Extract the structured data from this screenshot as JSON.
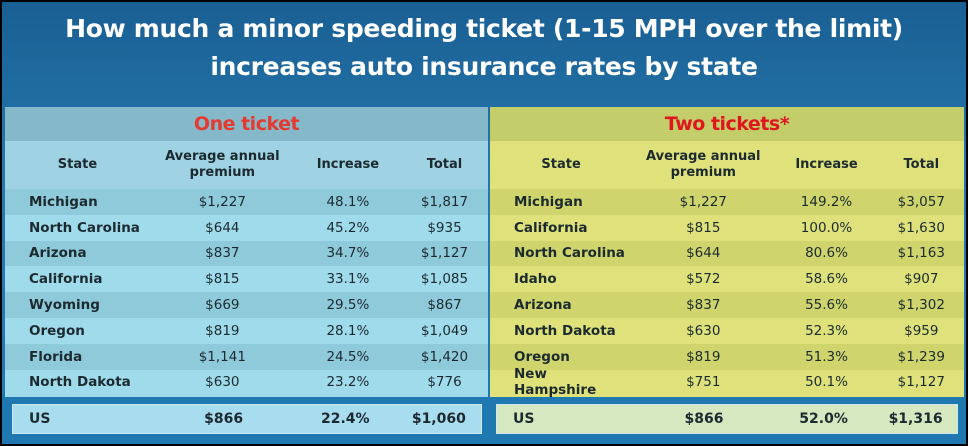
{
  "title_line1": "How much a minor speeding ticket (1-15 MPH over the limit)",
  "title_line2": "increases auto insurance rates by state",
  "columns": [
    "State",
    "Average annual premium",
    "Increase",
    "Total"
  ],
  "one_ticket": {
    "heading": "One ticket",
    "rows": [
      [
        "Michigan",
        "$1,227",
        "48.1%",
        "$1,817"
      ],
      [
        "North Carolina",
        "$644",
        "45.2%",
        "$935"
      ],
      [
        "Arizona",
        "$837",
        "34.7%",
        "$1,127"
      ],
      [
        "California",
        "$815",
        "33.1%",
        "$1,085"
      ],
      [
        "Wyoming",
        "$669",
        "29.5%",
        "$867"
      ],
      [
        "Oregon",
        "$819",
        "28.1%",
        "$1,049"
      ],
      [
        "Florida",
        "$1,141",
        "24.5%",
        "$1,420"
      ],
      [
        "North Dakota",
        "$630",
        "23.2%",
        "$776"
      ]
    ],
    "us": [
      "US",
      "$866",
      "22.4%",
      "$1,060"
    ]
  },
  "two_tickets": {
    "heading": "Two tickets*",
    "rows": [
      [
        "Michigan",
        "$1,227",
        "149.2%",
        "$3,057"
      ],
      [
        "California",
        "$815",
        "100.0%",
        "$1,630"
      ],
      [
        "North Carolina",
        "$644",
        "80.6%",
        "$1,163"
      ],
      [
        "Idaho",
        "$572",
        "58.6%",
        "$907"
      ],
      [
        "Arizona",
        "$837",
        "55.6%",
        "$1,302"
      ],
      [
        "North Dakota",
        "$630",
        "52.3%",
        "$959"
      ],
      [
        "Oregon",
        "$819",
        "51.3%",
        "$1,239"
      ],
      [
        "New Hampshire",
        "$751",
        "50.1%",
        "$1,127"
      ]
    ],
    "us": [
      "US",
      "$866",
      "52.0%",
      "$1,316"
    ]
  }
}
